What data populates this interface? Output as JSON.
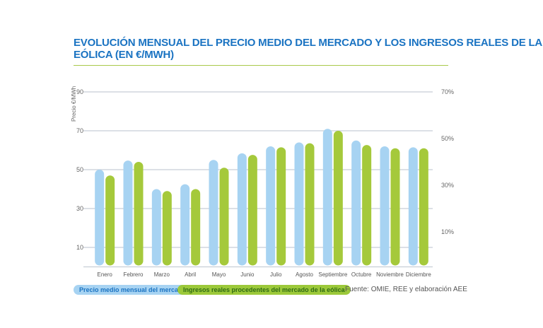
{
  "chart_data": {
    "type": "bar",
    "title": "EVOLUCIÓN MENSUAL DEL PRECIO MEDIO DEL MERCADO Y LOS INGRESOS REALES DE LA EÓLICA (EN €/MWH)",
    "ylabel": "Precio €/MWh",
    "ylim": [
      0,
      90
    ],
    "yticks": [
      10,
      30,
      50,
      70,
      90
    ],
    "y2ticks": [
      "10%",
      "30%",
      "50%",
      "70%"
    ],
    "categories": [
      "Enero",
      "Febrero",
      "Marzo",
      "Abril",
      "Mayo",
      "Junio",
      "Julio",
      "Agosto",
      "Septiembre",
      "Octubre",
      "Noviembre",
      "Diciembre"
    ],
    "series": [
      {
        "name": "Precio medio mensual del mercado",
        "color": "#a7d3f2",
        "values": [
          50,
          54.7,
          40,
          42.5,
          55,
          58.4,
          62,
          64,
          71,
          65,
          62,
          61.5
        ]
      },
      {
        "name": "Ingresos reales procedentes del mercado de la eólica",
        "color": "#a5c93b",
        "values": [
          47,
          54,
          39,
          40,
          51,
          57.6,
          61.5,
          63.6,
          70,
          62.7,
          61,
          61
        ]
      }
    ],
    "grid": true,
    "legend": "bottom-left",
    "source": "Fuente: OMIE, REE y elaboración AEE"
  }
}
